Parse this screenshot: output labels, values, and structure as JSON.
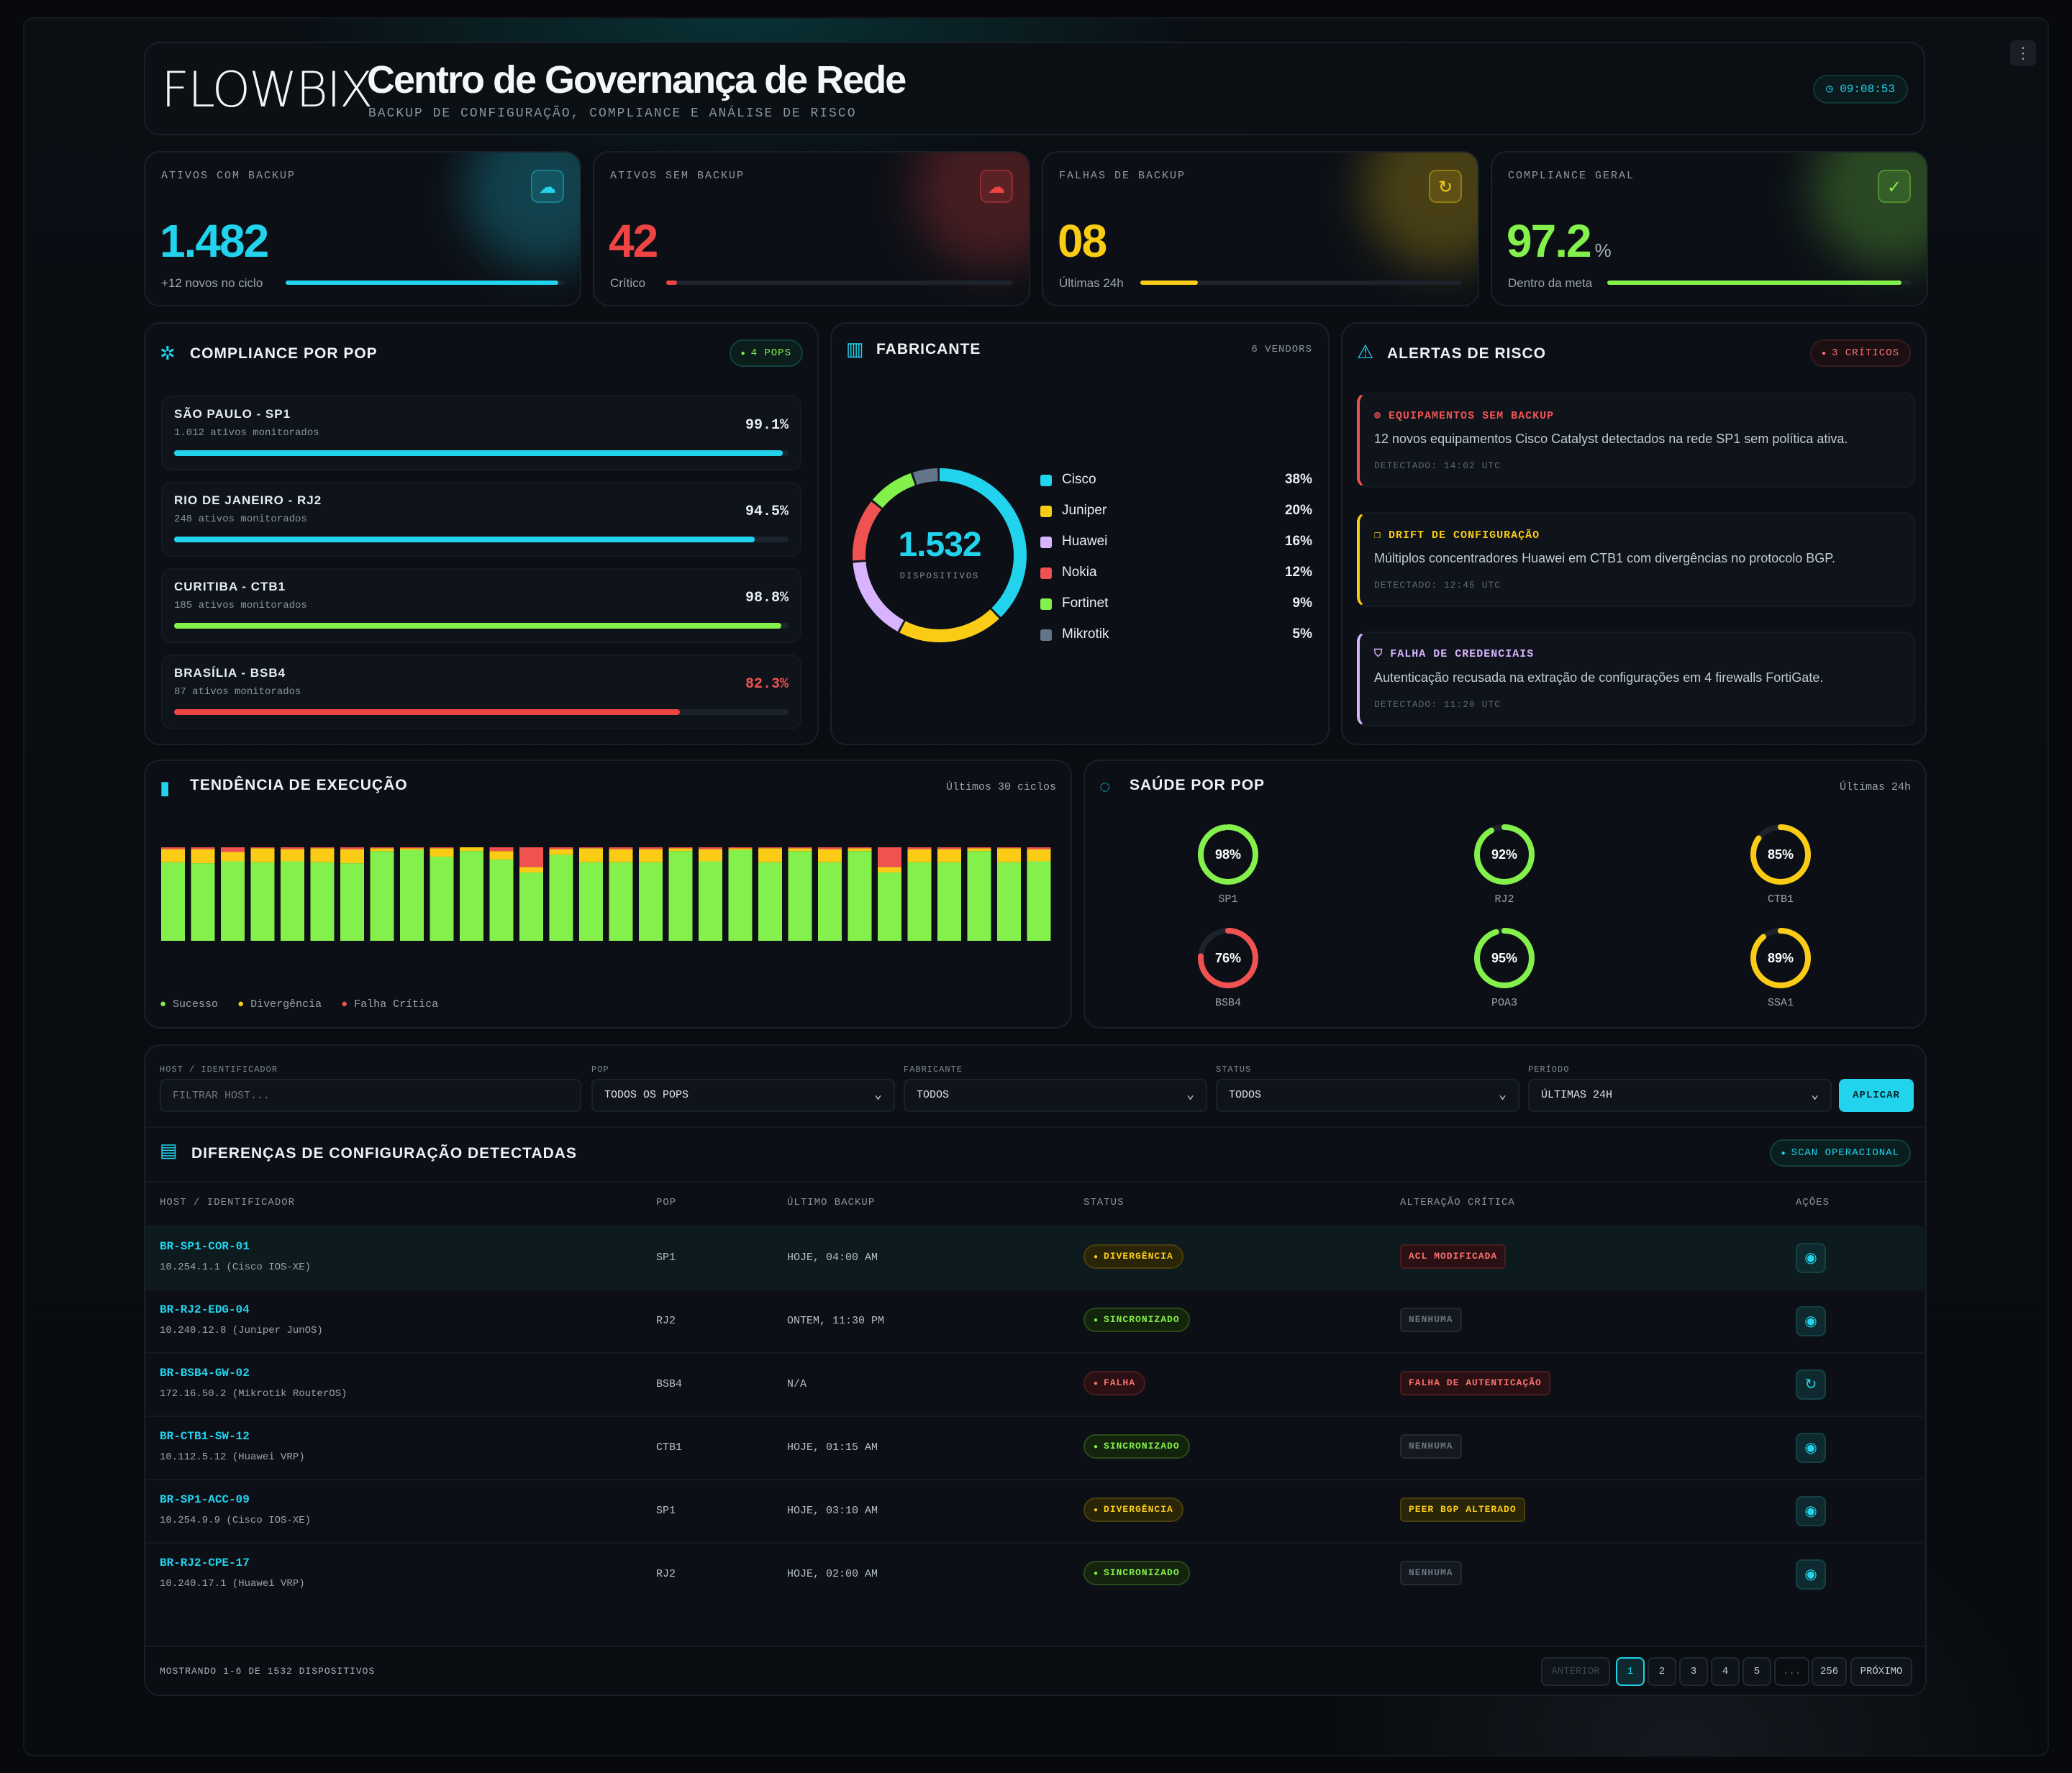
{
  "header": {
    "logo": "FLOWBIX",
    "title": "Centro de Governança de Rede",
    "subtitle": "BACKUP DE CONFIGURAÇÃO, COMPLIANCE E ANÁLISE DE RISCO",
    "clock": "09:08:53"
  },
  "kpis": [
    {
      "label": "ATIVOS COM BACKUP",
      "value": "1.482",
      "foot": "+12 novos no ciclo",
      "progress": 0.98,
      "color": "#22d3ee",
      "icon": "cloud-check-icon"
    },
    {
      "label": "ATIVOS SEM BACKUP",
      "value": "42",
      "foot": "Crítico",
      "progress": 0.03,
      "color": "#ef4444",
      "icon": "cloud-off-icon"
    },
    {
      "label": "FALHAS DE BACKUP",
      "value": "08",
      "foot": "Últimas 24h",
      "progress": 0.18,
      "color": "#facc15",
      "icon": "refresh-alert-icon"
    },
    {
      "label": "COMPLIANCE GERAL",
      "value": "97.2",
      "unit": "%",
      "foot": "Dentro da meta",
      "progress": 0.97,
      "color": "#84f04c",
      "icon": "shield-check-icon"
    }
  ],
  "compliance": {
    "title": "COMPLIANCE POR POP",
    "badge": "4 POPS",
    "pops": [
      {
        "name": "SÃO PAULO - SP1",
        "sub": "1.012 ativos monitorados",
        "value": "99.1%",
        "pct": 99.1,
        "color": "#22d3ee"
      },
      {
        "name": "RIO DE JANEIRO - RJ2",
        "sub": "248 ativos monitorados",
        "value": "94.5%",
        "pct": 94.5,
        "color": "#22d3ee"
      },
      {
        "name": "CURITIBA - CTB1",
        "sub": "185 ativos monitorados",
        "value": "98.8%",
        "pct": 98.8,
        "color": "#84f04c"
      },
      {
        "name": "BRASÍLIA - BSB4",
        "sub": "87 ativos monitorados",
        "value": "82.3%",
        "pct": 82.3,
        "color": "#ef4444"
      }
    ]
  },
  "vendors": {
    "title": "FABRICANTE",
    "count": "6 VENDORS",
    "total": "1.532",
    "total_label": "DISPOSITIVOS",
    "items": [
      {
        "name": "Cisco",
        "pct": "38%",
        "value": 38,
        "color": "#22d3ee"
      },
      {
        "name": "Juniper",
        "pct": "20%",
        "value": 20,
        "color": "#facc15"
      },
      {
        "name": "Huawei",
        "pct": "16%",
        "value": 16,
        "color": "#d8b4fe"
      },
      {
        "name": "Nokia",
        "pct": "12%",
        "value": 12,
        "color": "#f05252"
      },
      {
        "name": "Fortinet",
        "pct": "9%",
        "value": 9,
        "color": "#84f04c"
      },
      {
        "name": "Mikrotik",
        "pct": "5%",
        "value": 5,
        "color": "#64748b"
      }
    ]
  },
  "alerts": {
    "title": "ALERTAS DE RISCO",
    "badge": "3 CRÍTICOS",
    "items": [
      {
        "title": "EQUIPAMENTOS SEM BACKUP",
        "desc": "12 novos equipamentos Cisco Catalyst detectados na rede SP1 sem política ativa.",
        "time": "DETECTADO: 14:02 UTC",
        "color": "#f05252",
        "icon": "x-circle-icon"
      },
      {
        "title": "DRIFT DE CONFIGURAÇÃO",
        "desc": "Múltiplos concentradores Huawei em CTB1 com divergências no protocolo BGP.",
        "time": "DETECTADO: 12:45 UTC",
        "color": "#facc15",
        "icon": "copy-icon"
      },
      {
        "title": "FALHA DE CREDENCIAIS",
        "desc": "Autenticação recusada na extração de configurações em 4 firewalls FortiGate.",
        "time": "DETECTADO: 11:20 UTC",
        "color": "#d8b4fe",
        "icon": "shield-icon"
      }
    ]
  },
  "trend": {
    "title": "TENDÊNCIA DE EXECUÇÃO",
    "period": "Últimos 30 ciclos",
    "legend": [
      "Sucesso",
      "Divergência",
      "Falha Crítica"
    ],
    "colors": {
      "success": "#84f04c",
      "divergence": "#facc15",
      "fail": "#f05252"
    },
    "bars": [
      [
        84,
        14,
        2
      ],
      [
        83,
        15,
        2
      ],
      [
        85,
        10,
        5
      ],
      [
        84,
        15,
        1
      ],
      [
        85,
        13,
        2
      ],
      [
        84,
        15,
        1
      ],
      [
        83,
        15,
        2
      ],
      [
        96,
        3,
        1
      ],
      [
        97,
        2,
        1
      ],
      [
        90,
        9,
        1
      ],
      [
        96,
        4,
        0
      ],
      [
        87,
        9,
        4
      ],
      [
        73,
        6,
        21
      ],
      [
        92,
        6,
        2
      ],
      [
        84,
        15,
        1
      ],
      [
        84,
        14,
        2
      ],
      [
        84,
        14,
        2
      ],
      [
        96,
        3,
        1
      ],
      [
        85,
        13,
        2
      ],
      [
        97,
        2,
        1
      ],
      [
        84,
        15,
        1
      ],
      [
        96,
        3,
        1
      ],
      [
        84,
        14,
        2
      ],
      [
        96,
        3,
        1
      ],
      [
        73,
        6,
        21
      ],
      [
        84,
        14,
        2
      ],
      [
        84,
        14,
        2
      ],
      [
        96,
        3,
        1
      ],
      [
        84,
        15,
        1
      ],
      [
        85,
        13,
        2
      ]
    ]
  },
  "health": {
    "title": "SAÚDE POR POP",
    "period": "Últimas 24h",
    "items": [
      {
        "name": "SP1",
        "label": "98%",
        "value": 98,
        "color": "#84f04c"
      },
      {
        "name": "RJ2",
        "label": "92%",
        "value": 92,
        "color": "#84f04c"
      },
      {
        "name": "CTB1",
        "label": "85%",
        "value": 85,
        "color": "#facc15"
      },
      {
        "name": "BSB4",
        "label": "76%",
        "value": 76,
        "color": "#f05252"
      },
      {
        "name": "POA3",
        "label": "95%",
        "value": 95,
        "color": "#84f04c"
      },
      {
        "name": "SSA1",
        "label": "89%",
        "value": 89,
        "color": "#facc15"
      }
    ]
  },
  "filters": {
    "host_label": "HOST / IDENTIFICADOR",
    "host_placeholder": "FILTRAR HOST...",
    "pop_label": "POP",
    "pop_value": "TODOS OS POPS",
    "vendor_label": "FABRICANTE",
    "vendor_value": "TODOS",
    "status_label": "STATUS",
    "status_value": "TODOS",
    "period_label": "PERÍODO",
    "period_value": "ÚLTIMAS 24H",
    "apply": "APLICAR"
  },
  "diffs": {
    "title": "DIFERENÇAS DE CONFIGURAÇÃO DETECTADAS",
    "badge": "SCAN OPERACIONAL",
    "columns": [
      "HOST / IDENTIFICADOR",
      "POP",
      "ÚLTIMO BACKUP",
      "STATUS",
      "ALTERAÇÃO CRÍTICA",
      "AÇÕES"
    ],
    "rows": [
      {
        "host": "BR-SP1-COR-01",
        "ip": "10.254.1.1 (Cisco IOS-XE)",
        "pop": "SP1",
        "backup": "HOJE, 04:00 AM",
        "status": "DIVERGÊNCIA",
        "change": "ACL MODIFICADA",
        "action": "eye-icon"
      },
      {
        "host": "BR-RJ2-EDG-04",
        "ip": "10.240.12.8 (Juniper JunOS)",
        "pop": "RJ2",
        "backup": "ONTEM, 11:30 PM",
        "status": "SINCRONIZADO",
        "change": "NENHUMA",
        "action": "eye-icon"
      },
      {
        "host": "BR-BSB4-GW-02",
        "ip": "172.16.50.2 (Mikrotik RouterOS)",
        "pop": "BSB4",
        "backup": "N/A",
        "status": "FALHA",
        "change": "FALHA DE AUTENTICAÇÃO",
        "action": "retry-icon"
      },
      {
        "host": "BR-CTB1-SW-12",
        "ip": "10.112.5.12 (Huawei VRP)",
        "pop": "CTB1",
        "backup": "HOJE, 01:15 AM",
        "status": "SINCRONIZADO",
        "change": "NENHUMA",
        "action": "eye-icon"
      },
      {
        "host": "BR-SP1-ACC-09",
        "ip": "10.254.9.9 (Cisco IOS-XE)",
        "pop": "SP1",
        "backup": "HOJE, 03:10 AM",
        "status": "DIVERGÊNCIA",
        "change": "PEER BGP ALTERADO",
        "action": "eye-icon"
      },
      {
        "host": "BR-RJ2-CPE-17",
        "ip": "10.240.17.1 (Huawei VRP)",
        "pop": "RJ2",
        "backup": "HOJE, 02:00 AM",
        "status": "SINCRONIZADO",
        "change": "NENHUMA",
        "action": "eye-icon"
      }
    ],
    "footer": "MOSTRANDO 1-6 DE 1532 DISPOSITIVOS",
    "pagination": {
      "prev": "ANTERIOR",
      "pages": [
        "1",
        "2",
        "3",
        "4",
        "5",
        "...",
        "256"
      ],
      "next": "PRÓXIMO",
      "current": "1"
    }
  }
}
